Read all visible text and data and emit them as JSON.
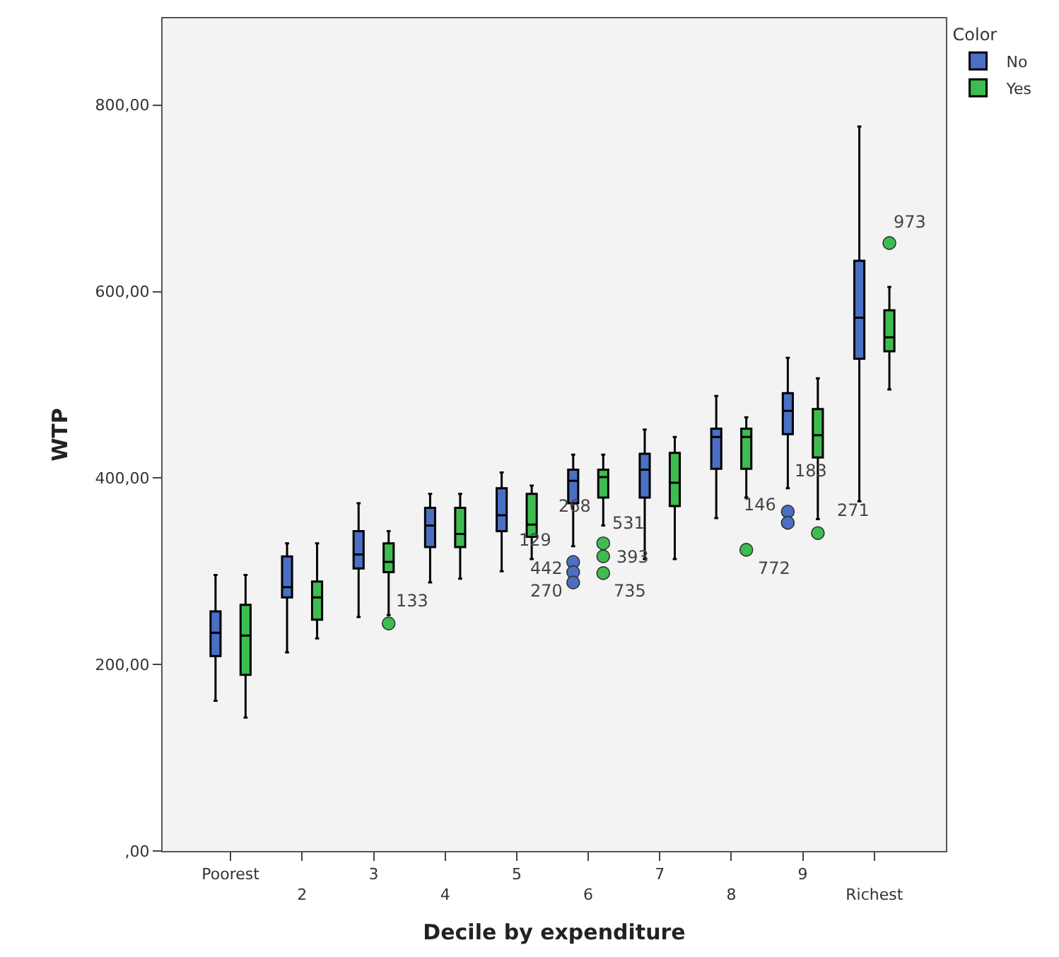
{
  "chart_data": {
    "type": "box",
    "xlabel": "Decile by expenditure",
    "ylabel": "WTP",
    "legend_title": "Color",
    "legend": "top right",
    "grid": false,
    "categories": [
      "Poorest",
      "2",
      "3",
      "4",
      "5",
      "6",
      "7",
      "8",
      "9",
      "Richest"
    ],
    "ylim": [
      0,
      893
    ],
    "yticks": [
      {
        "value": 0,
        "label": ",00"
      },
      {
        "value": 200,
        "label": "200,00"
      },
      {
        "value": 400,
        "label": "400,00"
      },
      {
        "value": 600,
        "label": "600,00"
      },
      {
        "value": 800,
        "label": "800,00"
      }
    ],
    "series": [
      {
        "name": "No",
        "color": "#4a6fc4",
        "boxes": [
          {
            "low": 161,
            "q1": 209,
            "median": 234,
            "q3": 257,
            "high": 296
          },
          {
            "low": 213,
            "q1": 272,
            "median": 283,
            "q3": 316,
            "high": 330
          },
          {
            "low": 251,
            "q1": 303,
            "median": 318,
            "q3": 343,
            "high": 373
          },
          {
            "low": 288,
            "q1": 326,
            "median": 349,
            "q3": 368,
            "high": 383
          },
          {
            "low": 300,
            "q1": 343,
            "median": 360,
            "q3": 389,
            "high": 406
          },
          {
            "low": 327,
            "q1": 373,
            "median": 397,
            "q3": 409,
            "high": 425,
            "outliers": [
              310,
              299,
              288
            ]
          },
          {
            "low": 313,
            "q1": 379,
            "median": 409,
            "q3": 426,
            "high": 452
          },
          {
            "low": 357,
            "q1": 410,
            "median": 444,
            "q3": 453,
            "high": 488
          },
          {
            "low": 389,
            "q1": 447,
            "median": 472,
            "q3": 491,
            "high": 529,
            "outliers": [
              364,
              352
            ]
          },
          {
            "low": 375,
            "q1": 528,
            "median": 572,
            "q3": 633,
            "high": 777
          }
        ]
      },
      {
        "name": "Yes",
        "color": "#3dbd4f",
        "boxes": [
          {
            "low": 143,
            "q1": 189,
            "median": 231,
            "q3": 264,
            "high": 296
          },
          {
            "low": 228,
            "q1": 248,
            "median": 272,
            "q3": 289,
            "high": 330
          },
          {
            "low": 253,
            "q1": 299,
            "median": 310,
            "q3": 330,
            "high": 343,
            "outliers": [
              244
            ]
          },
          {
            "low": 292,
            "q1": 326,
            "median": 340,
            "q3": 368,
            "high": 383
          },
          {
            "low": 313,
            "q1": 337,
            "median": 350,
            "q3": 383,
            "high": 392
          },
          {
            "low": 349,
            "q1": 379,
            "median": 401,
            "q3": 409,
            "high": 425,
            "outliers": [
              330,
              316,
              298
            ]
          },
          {
            "low": 313,
            "q1": 370,
            "median": 395,
            "q3": 427,
            "high": 444
          },
          {
            "low": 379,
            "q1": 410,
            "median": 444,
            "q3": 453,
            "high": 465,
            "outliers": [
              323
            ]
          },
          {
            "low": 356,
            "q1": 422,
            "median": 446,
            "q3": 474,
            "high": 507,
            "outliers": [
              341
            ]
          },
          {
            "low": 495,
            "q1": 536,
            "median": 551,
            "q3": 580,
            "high": 605,
            "outliers": [
              652
            ]
          }
        ]
      }
    ],
    "annotations": [
      "133",
      "129",
      "268",
      "442",
      "270",
      "531",
      "393",
      "735",
      "772",
      "146",
      "183",
      "271",
      "973"
    ]
  }
}
